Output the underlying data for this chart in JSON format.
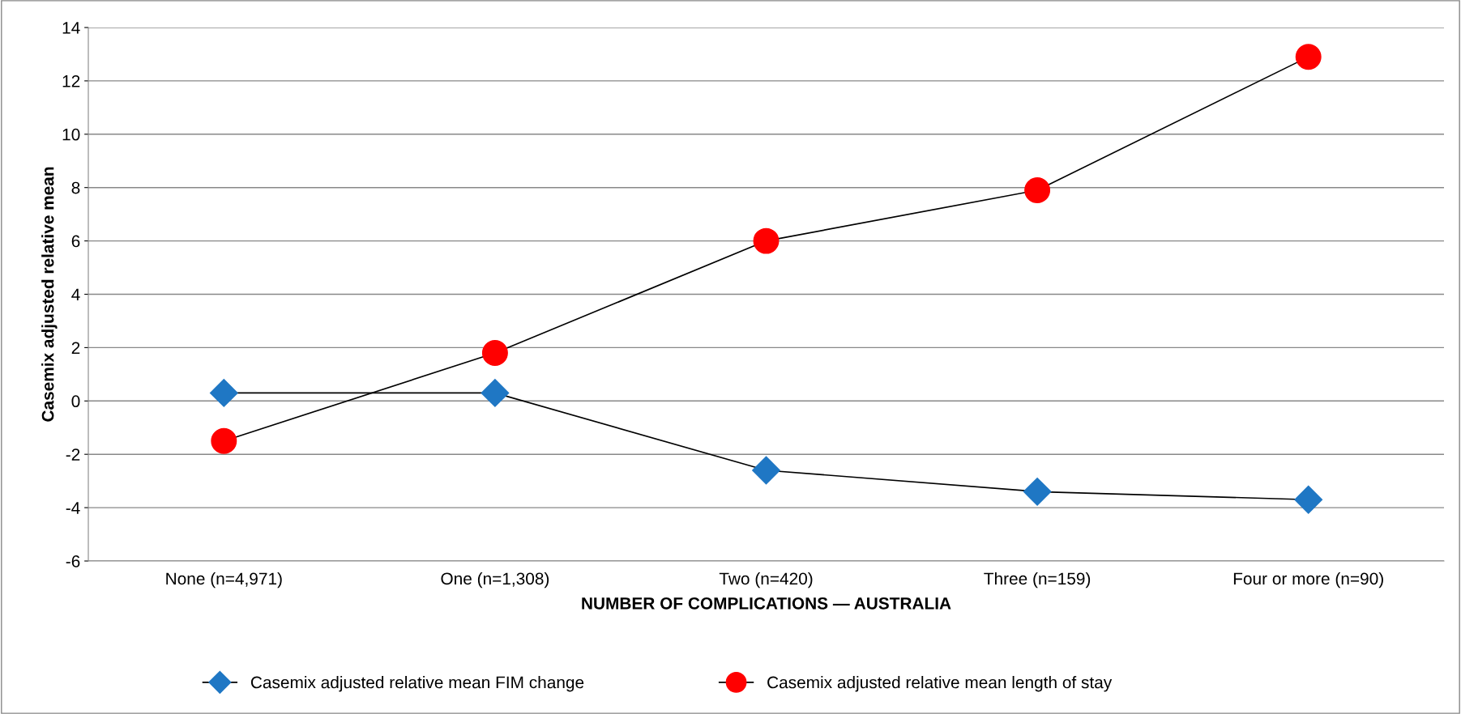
{
  "chart_data": {
    "type": "line",
    "xlabel": "NUMBER OF COMPLICATIONS — AUSTRALIA",
    "ylabel": "Casemix adjusted relative mean",
    "categories": [
      "None (n=4,971)",
      "One (n=1,308)",
      "Two (n=420)",
      "Three (n=159)",
      "Four or more (n=90)"
    ],
    "series": [
      {
        "name": "Casemix adjusted relative mean FIM change",
        "color": "#1f77c4",
        "marker": "diamond",
        "values": [
          0.3,
          0.3,
          -2.6,
          -3.4,
          -3.7
        ]
      },
      {
        "name": "Casemix adjusted relative mean length of stay",
        "color": "#ff0000",
        "marker": "circle",
        "values": [
          -1.5,
          1.8,
          6.0,
          7.9,
          12.9
        ]
      }
    ],
    "ylim": [
      -6,
      14
    ],
    "yticks": [
      -6,
      -4,
      -2,
      0,
      2,
      4,
      6,
      8,
      10,
      12,
      14
    ],
    "grid": "y",
    "legend": "bottom",
    "line_style": "solid"
  }
}
